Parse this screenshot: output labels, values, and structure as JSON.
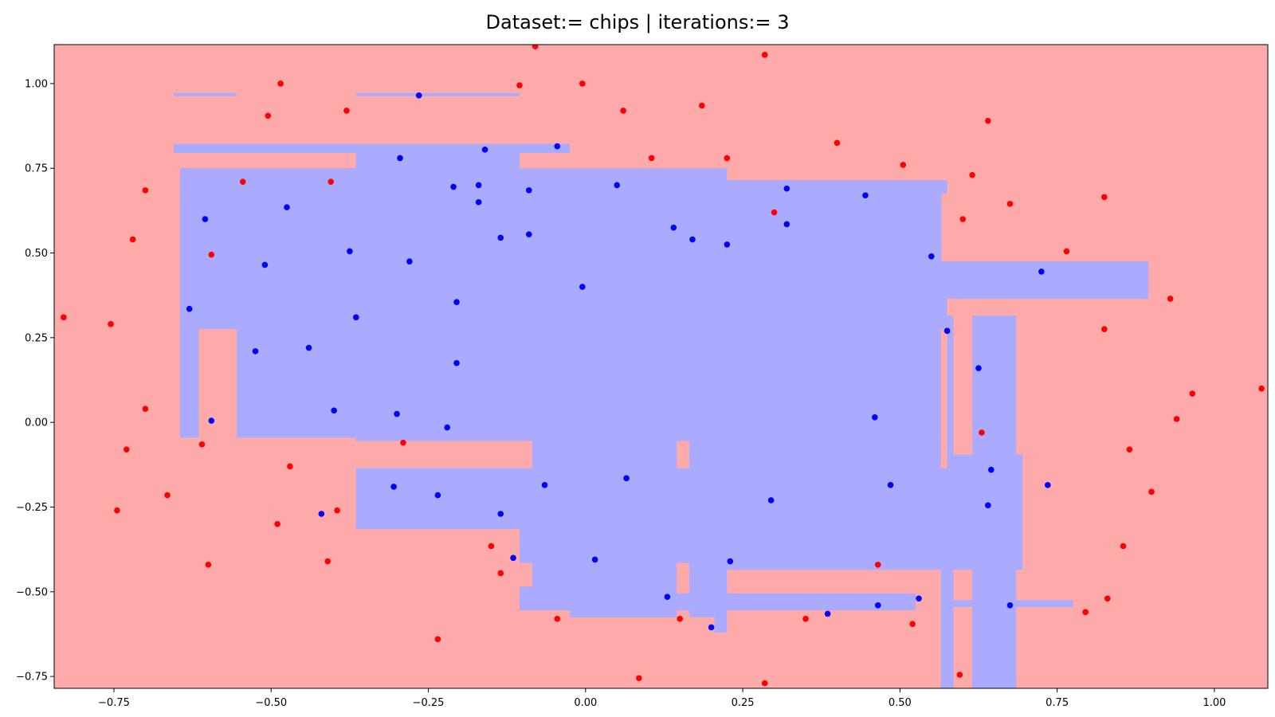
{
  "chart_data": {
    "type": "scatter",
    "title": "Dataset:= chips  |  iterations:= 3",
    "xlabel": "",
    "ylabel": "",
    "xlim": [
      -0.845,
      1.085
    ],
    "ylim": [
      -0.785,
      1.115
    ],
    "grid": false,
    "x_ticks": [
      -0.75,
      -0.5,
      -0.25,
      0.0,
      0.25,
      0.5,
      0.75,
      1.0
    ],
    "x_tick_labels": [
      "−0.75",
      "−0.50",
      "−0.25",
      "0.00",
      "0.25",
      "0.50",
      "0.75",
      "1.00"
    ],
    "y_ticks": [
      -0.75,
      -0.5,
      -0.25,
      0.0,
      0.25,
      0.5,
      0.75,
      1.0
    ],
    "y_tick_labels": [
      "−0.75",
      "−0.50",
      "−0.25",
      "0.00",
      "0.25",
      "0.50",
      "0.75",
      "1.00"
    ],
    "colors": {
      "background_region": "#ffaaaa",
      "positive_region": "#aaaaff",
      "class_red": "#ff0000",
      "class_blue": "#0000ff"
    },
    "decision_regions_blue": [
      [
        -0.655,
        -0.555,
        0.963,
        0.972
      ],
      [
        -0.365,
        -0.105,
        0.963,
        0.972
      ],
      [
        -0.655,
        -0.025,
        0.795,
        0.822
      ],
      [
        -0.365,
        -0.105,
        0.75,
        0.795
      ],
      [
        -0.645,
        -0.365,
        0.675,
        0.75
      ],
      [
        -0.365,
        0.225,
        0.675,
        0.75
      ],
      [
        -0.645,
        0.565,
        0.275,
        0.675
      ],
      [
        0.565,
        0.565,
        0.275,
        0.675
      ],
      [
        -0.645,
        -0.615,
        -0.045,
        0.275
      ],
      [
        -0.555,
        0.565,
        -0.045,
        0.275
      ],
      [
        -0.365,
        -0.085,
        -0.055,
        -0.045
      ],
      [
        -0.085,
        0.565,
        -0.135,
        -0.045
      ],
      [
        0.225,
        0.565,
        0.715,
        0.675
      ],
      [
        0.225,
        0.565,
        0.675,
        0.715
      ],
      [
        0.525,
        0.575,
        0.675,
        0.715
      ],
      [
        0.525,
        0.895,
        0.365,
        0.475
      ],
      [
        0.525,
        0.565,
        0.475,
        0.495
      ],
      [
        0.525,
        0.575,
        0.275,
        0.365
      ],
      [
        0.575,
        0.585,
        -0.785,
        0.315
      ],
      [
        0.615,
        0.685,
        -0.095,
        0.315
      ],
      [
        0.585,
        0.695,
        -0.435,
        -0.095
      ],
      [
        -0.365,
        0.585,
        -0.315,
        -0.135
      ],
      [
        -0.105,
        0.565,
        -0.415,
        -0.315
      ],
      [
        -0.085,
        0.145,
        -0.485,
        -0.415
      ],
      [
        0.145,
        0.165,
        -0.415,
        -0.135
      ],
      [
        0.165,
        0.585,
        -0.435,
        -0.315
      ],
      [
        0.165,
        0.225,
        -0.505,
        -0.435
      ],
      [
        -0.105,
        0.145,
        -0.555,
        -0.485
      ],
      [
        -0.025,
        0.145,
        -0.575,
        -0.555
      ],
      [
        0.145,
        0.525,
        -0.555,
        -0.505
      ],
      [
        0.165,
        0.205,
        -0.575,
        -0.555
      ],
      [
        0.205,
        0.225,
        -0.62,
        -0.505
      ],
      [
        0.565,
        0.575,
        -0.785,
        -0.435
      ],
      [
        0.615,
        0.685,
        -0.785,
        -0.435
      ],
      [
        0.585,
        0.775,
        -0.545,
        -0.525
      ]
    ],
    "decision_regions_red": [
      [
        -0.615,
        -0.555,
        -0.045,
        0.275
      ],
      [
        0.145,
        0.165,
        -0.135,
        -0.055
      ],
      [
        0.145,
        0.165,
        -0.485,
        -0.415
      ],
      [
        0.585,
        0.615,
        -0.095,
        0.315
      ]
    ],
    "series": [
      {
        "name": "",
        "color": "#ff0000",
        "points": [
          [
            -0.83,
            0.31
          ],
          [
            -0.755,
            0.29
          ],
          [
            -0.72,
            0.54
          ],
          [
            -0.7,
            0.685
          ],
          [
            -0.7,
            0.04
          ],
          [
            -0.73,
            -0.08
          ],
          [
            -0.745,
            -0.26
          ],
          [
            -0.665,
            -0.215
          ],
          [
            -0.61,
            -0.065
          ],
          [
            -0.6,
            -0.42
          ],
          [
            -0.595,
            0.495
          ],
          [
            -0.545,
            0.71
          ],
          [
            -0.505,
            0.905
          ],
          [
            -0.485,
            1.0
          ],
          [
            -0.49,
            -0.3
          ],
          [
            -0.47,
            -0.13
          ],
          [
            -0.405,
            0.71
          ],
          [
            -0.38,
            0.92
          ],
          [
            -0.41,
            -0.41
          ],
          [
            -0.395,
            -0.26
          ],
          [
            -0.29,
            -0.06
          ],
          [
            -0.235,
            -0.64
          ],
          [
            -0.15,
            -0.365
          ],
          [
            -0.135,
            -0.445
          ],
          [
            -0.105,
            0.995
          ],
          [
            -0.08,
            1.11
          ],
          [
            -0.045,
            -0.58
          ],
          [
            -0.005,
            1.0
          ],
          [
            0.06,
            0.92
          ],
          [
            0.085,
            -0.755
          ],
          [
            0.105,
            0.78
          ],
          [
            0.15,
            -0.58
          ],
          [
            0.185,
            0.935
          ],
          [
            0.225,
            0.78
          ],
          [
            0.285,
            1.085
          ],
          [
            0.3,
            0.62
          ],
          [
            0.285,
            -0.77
          ],
          [
            0.35,
            -0.58
          ],
          [
            0.4,
            0.825
          ],
          [
            0.465,
            -0.42
          ],
          [
            0.505,
            0.76
          ],
          [
            0.52,
            -0.595
          ],
          [
            0.595,
            -0.745
          ],
          [
            0.6,
            0.6
          ],
          [
            0.615,
            0.73
          ],
          [
            0.63,
            -0.03
          ],
          [
            0.64,
            0.89
          ],
          [
            0.675,
            0.645
          ],
          [
            0.765,
            0.505
          ],
          [
            0.795,
            -0.56
          ],
          [
            0.825,
            0.665
          ],
          [
            0.825,
            0.275
          ],
          [
            0.83,
            -0.52
          ],
          [
            0.855,
            -0.365
          ],
          [
            0.865,
            -0.08
          ],
          [
            0.9,
            -0.205
          ],
          [
            0.93,
            0.365
          ],
          [
            0.94,
            0.01
          ],
          [
            0.965,
            0.085
          ],
          [
            1.075,
            0.1
          ]
        ]
      },
      {
        "name": "",
        "color": "#0000ff",
        "points": [
          [
            -0.605,
            0.6
          ],
          [
            -0.63,
            0.335
          ],
          [
            -0.595,
            0.005
          ],
          [
            -0.51,
            0.465
          ],
          [
            -0.525,
            0.21
          ],
          [
            -0.475,
            0.635
          ],
          [
            -0.44,
            0.22
          ],
          [
            -0.42,
            -0.27
          ],
          [
            -0.4,
            0.035
          ],
          [
            -0.375,
            0.505
          ],
          [
            -0.365,
            0.31
          ],
          [
            -0.295,
            0.78
          ],
          [
            -0.28,
            0.475
          ],
          [
            -0.3,
            0.025
          ],
          [
            -0.305,
            -0.19
          ],
          [
            -0.265,
            0.965
          ],
          [
            -0.235,
            -0.215
          ],
          [
            -0.22,
            -0.015
          ],
          [
            -0.21,
            0.695
          ],
          [
            -0.205,
            0.355
          ],
          [
            -0.205,
            0.175
          ],
          [
            -0.17,
            0.7
          ],
          [
            -0.17,
            0.65
          ],
          [
            -0.16,
            0.805
          ],
          [
            -0.135,
            0.545
          ],
          [
            -0.135,
            -0.27
          ],
          [
            -0.115,
            -0.4
          ],
          [
            -0.09,
            0.685
          ],
          [
            -0.09,
            0.555
          ],
          [
            -0.065,
            -0.185
          ],
          [
            -0.045,
            0.815
          ],
          [
            -0.005,
            0.4
          ],
          [
            0.015,
            -0.405
          ],
          [
            0.05,
            0.7
          ],
          [
            0.065,
            -0.165
          ],
          [
            0.13,
            -0.515
          ],
          [
            0.14,
            0.575
          ],
          [
            0.17,
            0.54
          ],
          [
            0.2,
            -0.605
          ],
          [
            0.225,
            0.525
          ],
          [
            0.23,
            -0.41
          ],
          [
            0.295,
            -0.23
          ],
          [
            0.32,
            0.69
          ],
          [
            0.32,
            0.585
          ],
          [
            0.385,
            -0.565
          ],
          [
            0.445,
            0.67
          ],
          [
            0.46,
            0.015
          ],
          [
            0.465,
            -0.54
          ],
          [
            0.485,
            -0.185
          ],
          [
            0.53,
            -0.52
          ],
          [
            0.55,
            0.49
          ],
          [
            0.575,
            0.27
          ],
          [
            0.625,
            0.16
          ],
          [
            0.64,
            -0.245
          ],
          [
            0.645,
            -0.14
          ],
          [
            0.675,
            -0.54
          ],
          [
            0.725,
            0.445
          ],
          [
            0.735,
            -0.185
          ]
        ]
      }
    ]
  }
}
